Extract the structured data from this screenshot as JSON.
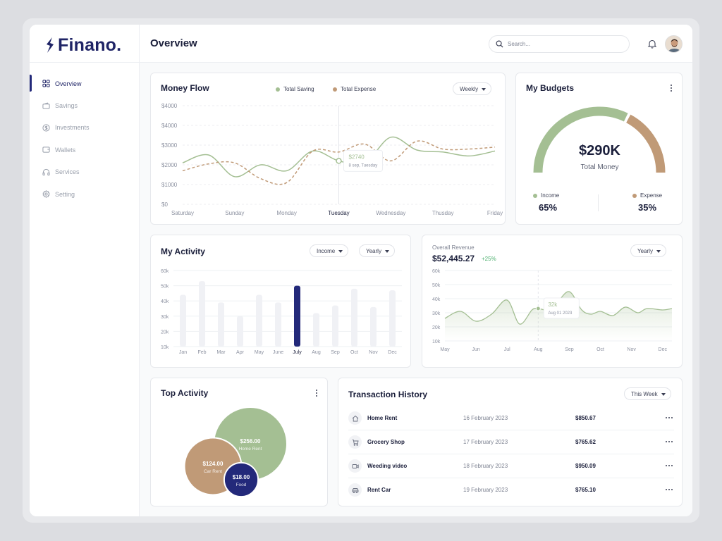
{
  "app": {
    "brand": "Finano.",
    "page_title": "Overview"
  },
  "sidebar": {
    "items": [
      {
        "label": "Overview",
        "icon": "grid-icon",
        "active": true
      },
      {
        "label": "Savings",
        "icon": "wallet-icon"
      },
      {
        "label": "Investments",
        "icon": "dollar-circle-icon"
      },
      {
        "label": "Wallets",
        "icon": "card-icon"
      },
      {
        "label": "Services",
        "icon": "headphones-icon"
      },
      {
        "label": "Setting",
        "icon": "gear-icon"
      }
    ]
  },
  "search": {
    "placeholder": "Search..."
  },
  "colors": {
    "saving": "#a4bf93",
    "expense": "#c09a77",
    "accent": "#23297a"
  },
  "money_flow": {
    "title": "Money Flow",
    "filter": "Weekly",
    "legend": {
      "saving": "Total Saving",
      "expense": "Total Expense"
    },
    "tooltip": {
      "value": "$2740",
      "label": "8 sep, Tuesday"
    }
  },
  "budgets": {
    "title": "My Budgets",
    "total_value": "$290K",
    "total_label": "Total Money",
    "income_label": "Income",
    "income_pct": "65%",
    "expense_label": "Expense",
    "expense_pct": "35%"
  },
  "activity": {
    "title": "My Activity",
    "filter_type": "Income",
    "filter_period": "Yearly"
  },
  "revenue": {
    "label": "Overall Revenue",
    "value": "$52,445.27",
    "change": "+25%",
    "filter": "Yearly",
    "tooltip": {
      "value": "32k",
      "label": "Aug 01 2023"
    }
  },
  "top_activity": {
    "title": "Top Activity",
    "bubbles": [
      {
        "value": "$256.00",
        "label": "Home Rent"
      },
      {
        "value": "$124.00",
        "label": "Car Rent"
      },
      {
        "value": "$18.00",
        "label": "Food"
      }
    ]
  },
  "transactions": {
    "title": "Transaction History",
    "filter": "This Week",
    "rows": [
      {
        "icon": "home-icon",
        "name": "Home Rent",
        "date": "16 February 2023",
        "amount": "$850.67"
      },
      {
        "icon": "cart-icon",
        "name": "Grocery Shop",
        "date": "17 February 2023",
        "amount": "$765.62"
      },
      {
        "icon": "video-icon",
        "name": "Weeding video",
        "date": "18 February 2023",
        "amount": "$950.09"
      },
      {
        "icon": "car-icon",
        "name": "Rent Car",
        "date": "19 February 2023",
        "amount": "$765.10"
      }
    ]
  },
  "chart_data": [
    {
      "type": "line",
      "title": "Money Flow",
      "categories": [
        "Saturday",
        "Sunday",
        "Monday",
        "Tuesday",
        "Wednesday",
        "Thusday",
        "Friday"
      ],
      "y_ticks": [
        "$4000",
        "$4000",
        "$3000",
        "$2000",
        "$1000",
        "$0"
      ],
      "x": [
        0,
        0.5,
        1,
        1.5,
        2,
        2.5,
        3,
        3.5,
        4,
        4.5,
        5,
        5.5,
        6
      ],
      "series": [
        {
          "name": "Total Saving",
          "style": "solid",
          "values": [
            2100,
            2500,
            1400,
            2000,
            1700,
            2700,
            2200,
            2100,
            3400,
            2750,
            2650,
            2450,
            2700
          ]
        },
        {
          "name": "Total Expense",
          "style": "dashed",
          "values": [
            1700,
            2050,
            2100,
            1300,
            1100,
            2700,
            2650,
            3050,
            2200,
            3200,
            2800,
            2800,
            2900
          ]
        }
      ],
      "ylim": [
        0,
        5000
      ],
      "grid": true
    },
    {
      "type": "bar",
      "title": "My Activity",
      "categories": [
        "Jan",
        "Feb",
        "Mar",
        "Apr",
        "May",
        "June",
        "July",
        "Aug",
        "Sep",
        "Oct",
        "Nov",
        "Dec"
      ],
      "values": [
        44000,
        53000,
        39000,
        30000,
        44000,
        39000,
        50000,
        32000,
        37000,
        48000,
        36000,
        47000
      ],
      "highlight": "July",
      "y_ticks": [
        "60k",
        "50k",
        "40k",
        "30k",
        "20k",
        "10k"
      ],
      "ylim": [
        10000,
        60000
      ],
      "grid": true
    },
    {
      "type": "area",
      "title": "Overall Revenue",
      "categories": [
        "May",
        "Jun",
        "Jul",
        "Aug",
        "Sep",
        "Oct",
        "Nov",
        "Dec"
      ],
      "x": [
        0,
        0.5,
        1,
        1.5,
        2,
        2.4,
        2.8,
        3,
        3.3,
        3.6,
        4,
        4.4,
        4.7,
        5,
        5.4,
        5.8,
        6.2,
        6.5,
        7,
        7.3
      ],
      "values": [
        26000,
        31000,
        24000,
        29000,
        39000,
        22000,
        32000,
        33000,
        32000,
        37000,
        45000,
        32000,
        29000,
        31000,
        28000,
        34000,
        30000,
        33000,
        32000,
        33000
      ],
      "y_ticks": [
        "60k",
        "50k",
        "40k",
        "30k",
        "20k",
        "10k"
      ],
      "ylim": [
        10000,
        60000
      ],
      "grid": true
    },
    {
      "type": "gauge",
      "title": "My Budgets",
      "segments": [
        {
          "name": "Income",
          "value": 65
        },
        {
          "name": "Expense",
          "value": 35
        }
      ]
    },
    {
      "type": "bubble",
      "title": "Top Activity",
      "items": [
        {
          "name": "Home Rent",
          "value": 256
        },
        {
          "name": "Car Rent",
          "value": 124
        },
        {
          "name": "Food",
          "value": 18
        }
      ]
    }
  ]
}
